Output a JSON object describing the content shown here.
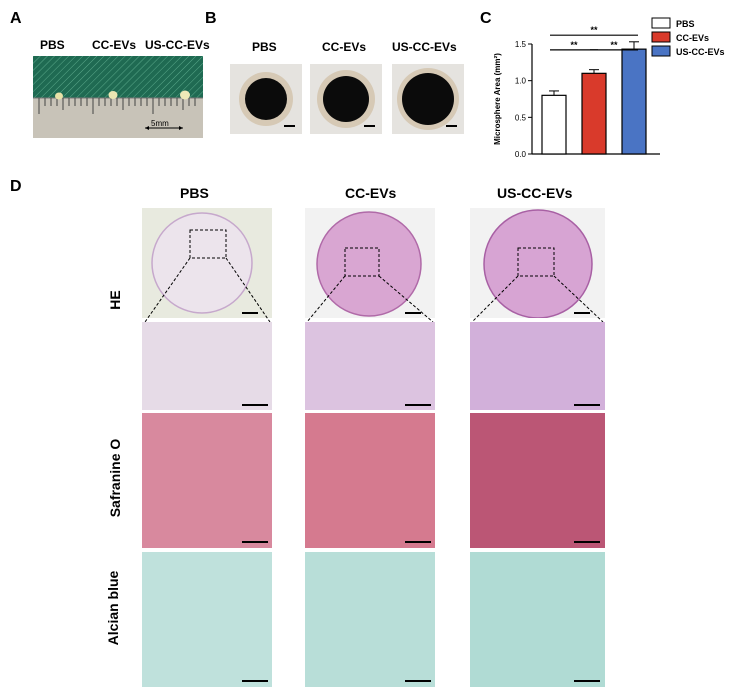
{
  "panels": {
    "a": {
      "letter": "A",
      "labels": [
        "PBS",
        "CC-EVs",
        "US-CC-EVs"
      ],
      "ruler_label": "5mm"
    },
    "b": {
      "letter": "B",
      "labels": [
        "PBS",
        "CC-EVs",
        "US-CC-EVs"
      ]
    },
    "c": {
      "letter": "C",
      "ylabel": "Microsphere Area (mm²)",
      "sig": [
        "**",
        "**",
        "**"
      ]
    },
    "d": {
      "letter": "D",
      "columns": [
        "PBS",
        "CC-EVs",
        "US-CC-EVs"
      ],
      "rows": [
        "HE",
        "Safranine O",
        "Alcian blue"
      ]
    }
  },
  "chart_data": {
    "type": "bar",
    "categories": [
      "PBS",
      "CC-EVs",
      "US-CC-EVs"
    ],
    "values": [
      0.8,
      1.1,
      1.43
    ],
    "errors": [
      0.06,
      0.05,
      0.1
    ],
    "colors": [
      "#ffffff",
      "#d93a2b",
      "#4a74c4"
    ],
    "legend": [
      "PBS",
      "CC-EVs",
      "US-CC-EVs"
    ],
    "ylabel": "Microsphere Area (mm²)",
    "ylim": [
      0,
      1.5
    ],
    "yticks": [
      "0.0",
      "0.5",
      "1.0",
      "1.5"
    ],
    "legend_position": "right"
  }
}
